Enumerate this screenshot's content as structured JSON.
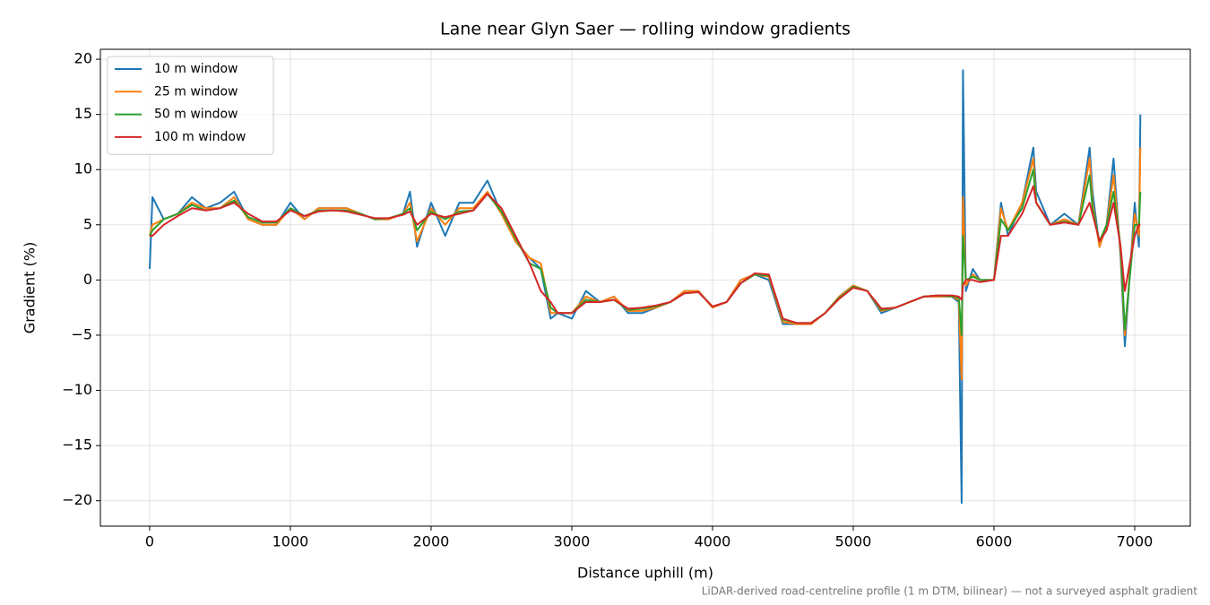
{
  "chart_data": {
    "type": "line",
    "title": "Lane near Glyn Saer — rolling window gradients",
    "x_label": "Distance uphill (m)",
    "y_label": "Gradient (%)",
    "annotation": "LiDAR-derived road-centreline profile (1 m DTM, bilinear) — not a surveyed asphalt gradient",
    "legend": "upper left",
    "grid": true,
    "xlim": [
      -350,
      7395
    ],
    "ylim": [
      -22.3,
      20.9
    ],
    "xticks": [
      0,
      1000,
      2000,
      3000,
      4000,
      5000,
      6000,
      7000
    ],
    "yticks": [
      {
        "value": -20,
        "label": "−20"
      },
      {
        "value": -15,
        "label": "−15"
      },
      {
        "value": -10,
        "label": "−10"
      },
      {
        "value": -5,
        "label": "−5"
      },
      0,
      5,
      10,
      15,
      20
    ],
    "x": [
      0,
      20,
      100,
      200,
      300,
      400,
      500,
      600,
      700,
      800,
      900,
      1000,
      1100,
      1200,
      1300,
      1400,
      1500,
      1600,
      1700,
      1800,
      1850,
      1900,
      2000,
      2100,
      2200,
      2300,
      2400,
      2500,
      2600,
      2700,
      2780,
      2850,
      2900,
      3000,
      3100,
      3200,
      3300,
      3400,
      3500,
      3600,
      3700,
      3800,
      3900,
      4000,
      4100,
      4200,
      4300,
      4400,
      4500,
      4600,
      4700,
      4800,
      4900,
      5000,
      5100,
      5200,
      5300,
      5400,
      5500,
      5600,
      5700,
      5750,
      5770,
      5780,
      5800,
      5850,
      5900,
      6000,
      6050,
      6100,
      6200,
      6280,
      6300,
      6400,
      6500,
      6600,
      6680,
      6700,
      6750,
      6800,
      6850,
      6900,
      6930,
      7000,
      7030,
      7040
    ],
    "series": [
      {
        "name": "10 m window",
        "color": "#1f77b4",
        "values": [
          1,
          7.5,
          5.5,
          6,
          7.5,
          6.5,
          7,
          8,
          5.5,
          5,
          5,
          7,
          5.5,
          6.5,
          6.5,
          6.5,
          6,
          5.5,
          5.5,
          6,
          8,
          3,
          7,
          4,
          7,
          7,
          9,
          6,
          3.5,
          2,
          1,
          -3.5,
          -3,
          -3.5,
          -1,
          -2,
          -1.5,
          -3,
          -3,
          -2.5,
          -2,
          -1,
          -1,
          -2.5,
          -2,
          0,
          0.5,
          0,
          -4,
          -4,
          -4,
          -3,
          -1.5,
          -0.5,
          -1,
          -3,
          -2.5,
          -2,
          -1.5,
          -1.5,
          -1.5,
          -2,
          -20.2,
          19,
          -1,
          1,
          0,
          0,
          7,
          4,
          7,
          12,
          8,
          5,
          6,
          5,
          12,
          8,
          3,
          5,
          11,
          2,
          -6,
          7,
          3,
          15
        ]
      },
      {
        "name": "25 m window",
        "color": "#ff7f0e",
        "values": [
          4,
          5,
          5.5,
          6,
          7,
          6.5,
          6.5,
          7.5,
          5.5,
          5,
          5,
          6.5,
          5.5,
          6.5,
          6.5,
          6.5,
          6,
          5.5,
          5.5,
          6,
          7,
          3.5,
          6.5,
          5,
          6.5,
          6.5,
          8,
          6,
          3.5,
          2,
          1.5,
          -3,
          -3,
          -3,
          -1.5,
          -2,
          -1.5,
          -2.8,
          -2.8,
          -2.5,
          -2,
          -1,
          -1,
          -2.5,
          -2,
          0,
          0.5,
          0.3,
          -3.8,
          -4,
          -4,
          -3,
          -1.5,
          -0.5,
          -1,
          -2.8,
          -2.5,
          -2,
          -1.5,
          -1.5,
          -1.5,
          -1.8,
          -9,
          7.5,
          -0.5,
          0.5,
          0,
          0,
          6.5,
          4.5,
          7,
          11,
          7,
          5,
          5.5,
          5,
          11,
          7,
          3,
          5,
          9.5,
          2.5,
          -5,
          6,
          4,
          12
        ]
      },
      {
        "name": "50 m window",
        "color": "#2ca02c",
        "values": [
          4,
          4.5,
          5.5,
          6,
          6.8,
          6.3,
          6.5,
          7.2,
          5.7,
          5.2,
          5.2,
          6.5,
          5.8,
          6.3,
          6.3,
          6.3,
          6,
          5.5,
          5.6,
          6,
          6.5,
          4.5,
          6.2,
          5.5,
          6.2,
          6.3,
          7.8,
          6.2,
          3.8,
          1.5,
          1,
          -2.5,
          -3,
          -3,
          -1.8,
          -2,
          -1.8,
          -2.7,
          -2.6,
          -2.4,
          -2,
          -1.2,
          -1.1,
          -2.4,
          -2,
          -0.3,
          0.5,
          0.4,
          -3.6,
          -3.9,
          -3.9,
          -3,
          -1.6,
          -0.6,
          -1,
          -2.7,
          -2.5,
          -2,
          -1.5,
          -1.4,
          -1.5,
          -1.6,
          -5,
          4,
          0,
          0.3,
          0,
          0,
          5.5,
          4.5,
          6.5,
          10,
          7,
          5,
          5.3,
          5,
          9.5,
          6.5,
          3.5,
          5,
          8,
          3,
          -4.5,
          5,
          5,
          8
        ]
      },
      {
        "name": "100 m window",
        "color": "#d62728",
        "values": [
          4,
          4,
          5,
          5.8,
          6.5,
          6.3,
          6.5,
          7,
          6,
          5.3,
          5.3,
          6.3,
          5.8,
          6.2,
          6.3,
          6.2,
          5.9,
          5.6,
          5.6,
          5.9,
          6.2,
          5,
          6,
          5.7,
          6,
          6.3,
          7.8,
          6.5,
          4,
          1.5,
          -1,
          -2,
          -3,
          -3,
          -2,
          -2,
          -1.8,
          -2.6,
          -2.5,
          -2.3,
          -2,
          -1.2,
          -1.1,
          -2.4,
          -2,
          -0.3,
          0.6,
          0.5,
          -3.5,
          -3.9,
          -3.9,
          -3,
          -1.7,
          -0.7,
          -1,
          -2.6,
          -2.5,
          -2,
          -1.5,
          -1.4,
          -1.4,
          -1.5,
          -1.8,
          -0.5,
          0,
          0,
          -0.2,
          0,
          4,
          4,
          6,
          8.5,
          7,
          5,
          5.2,
          5,
          7,
          6,
          3.5,
          4.5,
          7,
          3,
          -1,
          4,
          5,
          5
        ]
      }
    ]
  }
}
